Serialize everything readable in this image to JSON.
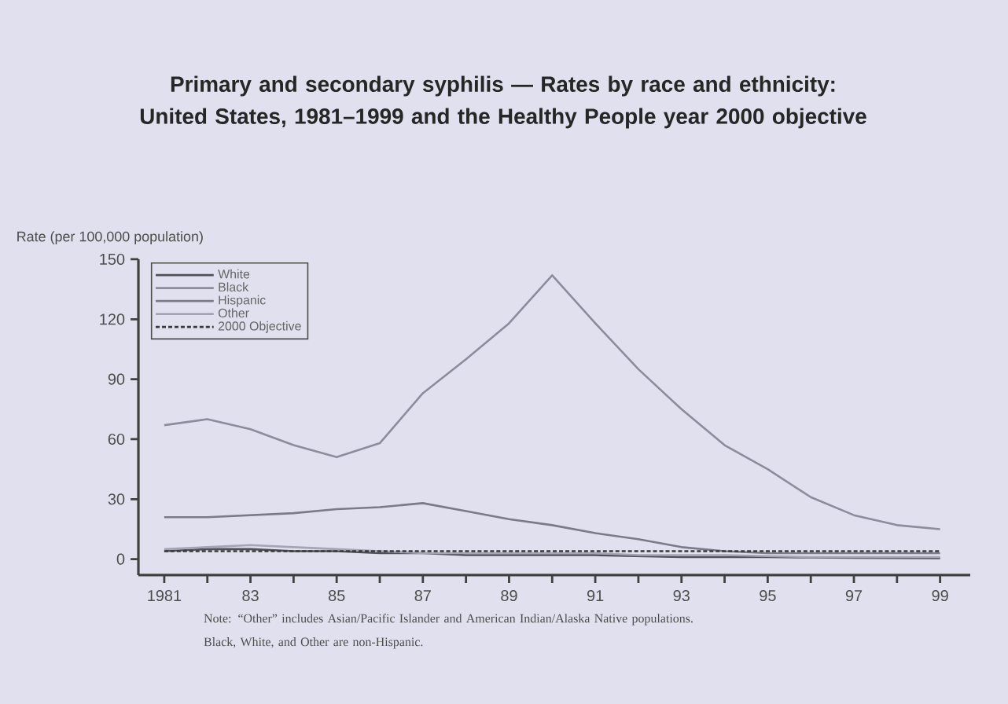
{
  "chart_data": {
    "type": "line",
    "title": "Primary and secondary syphilis — Rates by race and ethnicity: United States, 1981–1999 and the Healthy People year 2000 objective",
    "ylabel": "Rate (per 100,000 population)",
    "x": [
      1981,
      1982,
      1983,
      1984,
      1985,
      1986,
      1987,
      1988,
      1989,
      1990,
      1991,
      1992,
      1993,
      1994,
      1995,
      1996,
      1997,
      1998,
      1999
    ],
    "series": [
      {
        "name": "White",
        "color": "#505058",
        "values": [
          4,
          5,
          5,
          4,
          4,
          3,
          3,
          2,
          2,
          2,
          2,
          1.5,
          1,
          1,
          1,
          0.8,
          0.7,
          0.6,
          0.5
        ]
      },
      {
        "name": "Black",
        "color": "#8c8c9c",
        "values": [
          67,
          70,
          65,
          57,
          51,
          58,
          83,
          100,
          118,
          142,
          118,
          95,
          75,
          57,
          45,
          31,
          22,
          17,
          15
        ]
      },
      {
        "name": "Hispanic",
        "color": "#7a7a88",
        "values": [
          21,
          21,
          22,
          23,
          25,
          26,
          28,
          24,
          20,
          17,
          13,
          10,
          6,
          4,
          3,
          3,
          3,
          3,
          3
        ]
      },
      {
        "name": "Other",
        "color": "#a4a4b4",
        "values": [
          5,
          6,
          7,
          6,
          5,
          4,
          3,
          3,
          3,
          3,
          3,
          2,
          2,
          2,
          1.5,
          1,
          1,
          1,
          1
        ]
      },
      {
        "name": "2000 Objective",
        "color": "#38383e",
        "line_style": "dashed",
        "values": [
          4,
          4,
          4,
          4,
          4,
          4,
          4,
          4,
          4,
          4,
          4,
          4,
          4,
          4,
          4,
          4,
          4,
          4,
          4
        ]
      }
    ],
    "xlim": [
      1980.4,
      1999.7
    ],
    "ylim": [
      -8,
      150
    ],
    "xticks": [
      1981,
      {
        "value": 1982,
        "label": null
      },
      {
        "value": 1983,
        "label": "83"
      },
      {
        "value": 1984,
        "label": null
      },
      {
        "value": 1985,
        "label": "85"
      },
      {
        "value": 1986,
        "label": null
      },
      {
        "value": 1987,
        "label": "87"
      },
      {
        "value": 1988,
        "label": null
      },
      {
        "value": 1989,
        "label": "89"
      },
      {
        "value": 1990,
        "label": null
      },
      {
        "value": 1991,
        "label": "91"
      },
      {
        "value": 1992,
        "label": null
      },
      {
        "value": 1993,
        "label": "93"
      },
      {
        "value": 1994,
        "label": null
      },
      {
        "value": 1995,
        "label": "95"
      },
      {
        "value": 1996,
        "label": null
      },
      {
        "value": 1997,
        "label": "97"
      },
      {
        "value": 1998,
        "label": null
      },
      {
        "value": 1999,
        "label": "99"
      }
    ],
    "yticks": [
      0,
      30,
      60,
      90,
      120,
      150
    ],
    "grid": false,
    "legend": "top left",
    "annotations": [
      "Note: “Other” includes Asian/Pacific Islander and American Indian/Alaska Native populations. Black, White, and Other are non-Hispanic."
    ]
  }
}
